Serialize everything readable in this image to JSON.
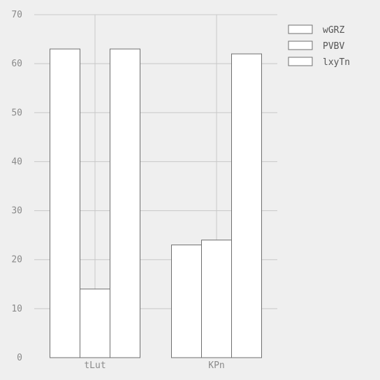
{
  "chart_data": {
    "type": "bar",
    "categories": [
      "tLut",
      "KPn"
    ],
    "series": [
      {
        "name": "wGRZ",
        "values": [
          63,
          23
        ]
      },
      {
        "name": "PVBV",
        "values": [
          14,
          24
        ]
      },
      {
        "name": "lxyTn",
        "values": [
          63,
          62
        ]
      }
    ],
    "title": "",
    "xlabel": "",
    "ylabel": "",
    "ylim": [
      0,
      70
    ],
    "yticks": [
      0,
      10,
      20,
      30,
      40,
      50,
      60,
      70
    ],
    "grid": true,
    "legend_position": "top-right",
    "colors": {
      "background": "#efefef",
      "bar_fill": "#ffffff",
      "bar_stroke": "#6f6f6f",
      "grid": "#c8c8c8",
      "tick_text": "#8a8a8a",
      "legend_text": "#555555"
    }
  }
}
